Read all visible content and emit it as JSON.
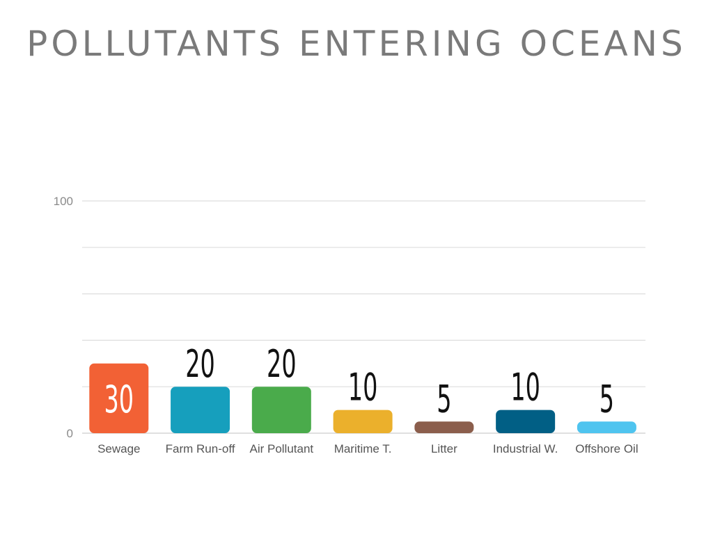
{
  "chart_data": {
    "type": "bar",
    "title": "POLLUTANTS ENTERING OCEANS",
    "categories": [
      "Sewage",
      "Farm Run-off",
      "Air Pollutant",
      "Maritime T.",
      "Litter",
      "Industrial W.",
      "Offshore Oil"
    ],
    "values": [
      30,
      20,
      20,
      10,
      5,
      10,
      5
    ],
    "colors": [
      "#f26135",
      "#169fbd",
      "#4aab4b",
      "#ebb02c",
      "#8b5e4c",
      "#015f85",
      "#4fc4ef"
    ],
    "ylim": [
      0,
      100
    ],
    "y_ticks_labeled": [
      "0",
      "100"
    ],
    "grid": true,
    "xlabel": "",
    "ylabel": ""
  }
}
